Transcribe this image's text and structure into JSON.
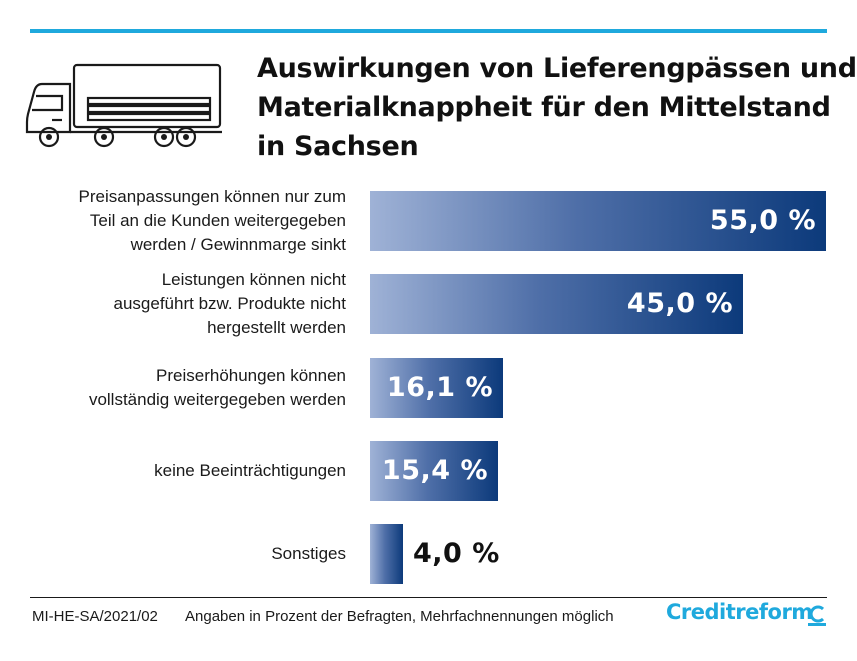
{
  "colors": {
    "accent": "#1fa9dd",
    "bar_dark": "#0c3a7b",
    "bar_light": "#9fb2d6"
  },
  "title_lines": [
    "Auswirkungen von Lieferengpässen und",
    "Materialknappheit für den Mittelstand",
    "in Sachsen"
  ],
  "chart_data": {
    "type": "bar",
    "orientation": "horizontal",
    "title": "Auswirkungen von Lieferengpässen und Materialknappheit für den Mittelstand in Sachsen",
    "categories": [
      "Preisanpassungen können nur zum Teil an die Kunden weitergegeben werden / Gewinnmarge sinkt",
      "Leistungen können nicht ausgeführt bzw. Produkte nicht hergestellt werden",
      "Preiserhöhungen können vollständig weitergegeben werden",
      "keine Beeinträchtigungen",
      "Sonstiges"
    ],
    "values": [
      55.0,
      45.0,
      16.1,
      15.4,
      4.0
    ],
    "value_labels": [
      "55,0 %",
      "45,0 %",
      "16,1 %",
      "15,4 %",
      "4,0 %"
    ],
    "category_lines": [
      [
        "Preisanpassungen können nur zum",
        "Teil an die Kunden weitergegeben",
        "werden / Gewinnmarge sinkt"
      ],
      [
        "Leistungen können nicht",
        "ausgeführt bzw. Produkte nicht",
        "hergestellt werden"
      ],
      [
        "Preiserhöhungen können",
        "vollständig weitergegeben werden"
      ],
      [
        "keine Beeinträchtigungen"
      ],
      [
        "Sonstiges"
      ]
    ],
    "xlim": [
      0,
      55
    ],
    "grid": false,
    "legend": "none"
  },
  "footer": {
    "code": "MI-HE-SA/2021/02",
    "note": "Angaben in Prozent der Befragten, Mehrfachnennungen möglich",
    "brand": "Creditreform"
  }
}
